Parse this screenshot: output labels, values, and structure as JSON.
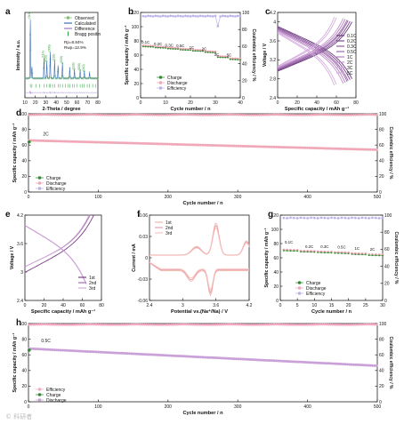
{
  "colors": {
    "xrd_obs": "#7ac36a",
    "xrd_calc": "#3b6fb6",
    "xrd_diff": "#9a7bd0",
    "xrd_bragg": "#2e9e3e",
    "charge": "#2e8b2e",
    "discharge": "#f0a8b8",
    "efficiency": "#b9b2e6",
    "cycle_h": "#c9a0d8",
    "eff_h": "#f5a8c0",
    "cv1": "#f4b6a8",
    "cv2": "#e8a0b0",
    "cv3": "#f7c6c0",
    "panel_c": [
      "#6b3c7e",
      "#7d4a90",
      "#8f5ba0",
      "#a06bb0",
      "#b37fc0",
      "#c595d0",
      "#d6addf"
    ],
    "panel_e": [
      "#7a3f86",
      "#a56db3",
      "#d4a9dc"
    ]
  },
  "watermark": "© 科研者",
  "chart_data": [
    {
      "id": "a",
      "type": "line",
      "label": "a",
      "xlabel": "2-Theta / degree",
      "ylabel": "Intensity / a.u.",
      "xlim": [
        10,
        80
      ],
      "xticks": [
        10,
        20,
        30,
        40,
        50,
        60,
        70,
        80
      ],
      "legend": [
        "Observed",
        "Calculated",
        "Difference",
        "Bragg positin"
      ],
      "annotations": [
        "Rp=8.84%",
        "Rwp=12.9%"
      ],
      "peaks": [
        {
          "x": 15.2,
          "h": 1.0,
          "label": "(010)"
        },
        {
          "x": 16.7,
          "h": 0.2
        },
        {
          "x": 28.3,
          "h": 0.35,
          "label": "(114)"
        },
        {
          "x": 31.0,
          "h": 0.28,
          "label": "(020)"
        },
        {
          "x": 34.3,
          "h": 0.45,
          "label": "(006)"
        },
        {
          "x": 38.5,
          "h": 0.3,
          "label": "(116)"
        },
        {
          "x": 41.8,
          "h": 0.22
        },
        {
          "x": 46.0,
          "h": 0.26,
          "label": "(030)"
        },
        {
          "x": 53.0,
          "h": 0.18
        },
        {
          "x": 57.5,
          "h": 0.15,
          "label": "(128)"
        },
        {
          "x": 63.0,
          "h": 0.14,
          "label": "(036)"
        },
        {
          "x": 67.0,
          "h": 0.12,
          "label": "(040)"
        },
        {
          "x": 72.0,
          "h": 0.1
        }
      ],
      "bragg": [
        15.2,
        16.7,
        20.5,
        24.3,
        28.3,
        31.0,
        33.2,
        34.3,
        36.5,
        38.5,
        41.8,
        44.0,
        46.0,
        48.8,
        51.2,
        53.0,
        55.6,
        57.5,
        60.1,
        63.0,
        65.2,
        67.0,
        69.8,
        72.0,
        75.0,
        77.6
      ]
    },
    {
      "id": "b",
      "type": "scatter",
      "label": "b",
      "xlabel": "Cycle number / n",
      "ylabel": "Specific capacity / mAh g⁻¹",
      "y2label": "Coulombic efficiency / %",
      "xlim": [
        0,
        40
      ],
      "ylim": [
        0,
        120
      ],
      "y2lim": [
        0,
        100
      ],
      "xticks": [
        0,
        10,
        20,
        30,
        40
      ],
      "yticks": [
        0,
        20,
        40,
        60,
        80,
        100,
        120
      ],
      "y2ticks": [
        0,
        20,
        40,
        60,
        80,
        100
      ],
      "legend": [
        "Charge",
        "Discharge",
        "Efficiency"
      ],
      "rates": [
        {
          "label": "0.1C",
          "x": 2,
          "y": 76
        },
        {
          "label": "0.2C",
          "x": 7,
          "y": 74
        },
        {
          "label": "0.3C",
          "x": 11.5,
          "y": 72
        },
        {
          "label": "0.5C",
          "x": 16,
          "y": 71
        },
        {
          "label": "1C",
          "x": 20.5,
          "y": 69
        },
        {
          "label": "2C",
          "x": 25.5,
          "y": 67
        },
        {
          "label": "3C",
          "x": 30.5,
          "y": 59
        },
        {
          "label": "5C",
          "x": 35.5,
          "y": 58
        }
      ],
      "charge_segments": [
        {
          "from": 1,
          "to": 5,
          "start": 72,
          "end": 71.5
        },
        {
          "from": 6,
          "to": 10,
          "start": 70.5,
          "end": 70
        },
        {
          "from": 11,
          "to": 15,
          "start": 69,
          "end": 68.5
        },
        {
          "from": 16,
          "to": 20,
          "start": 67.5,
          "end": 67
        },
        {
          "from": 21,
          "to": 25,
          "start": 66,
          "end": 65.5
        },
        {
          "from": 26,
          "to": 30,
          "start": 64,
          "end": 63.5
        },
        {
          "from": 31,
          "to": 35,
          "start": 57,
          "end": 56.5
        },
        {
          "from": 36,
          "to": 40,
          "start": 54,
          "end": 53.5
        }
      ],
      "efficiency": {
        "from": 1,
        "to": 40,
        "value": 96,
        "dip_at": 31,
        "dip_value": 84
      }
    },
    {
      "id": "c",
      "type": "line",
      "label": "c",
      "xlabel": "Specific capacity / mAh g⁻¹",
      "ylabel": "Voltage / V",
      "xlim": [
        0,
        80
      ],
      "ylim": [
        2.4,
        4.2
      ],
      "xticks": [
        0,
        20,
        40,
        60,
        80
      ],
      "yticks": [
        2.4,
        2.8,
        3.2,
        3.6,
        4.0,
        4.2
      ],
      "legend": [
        "0.1C",
        "0.2C",
        "0.3C",
        "0.5C",
        "1C",
        "2C",
        "3C",
        "5C"
      ],
      "curves": [
        {
          "rate": "0.1C",
          "capacity": 76
        },
        {
          "rate": "0.2C",
          "capacity": 74
        },
        {
          "rate": "0.3C",
          "capacity": 72
        },
        {
          "rate": "0.5C",
          "capacity": 71
        },
        {
          "rate": "1C",
          "capacity": 69
        },
        {
          "rate": "2C",
          "capacity": 67
        },
        {
          "rate": "3C",
          "capacity": 60
        },
        {
          "rate": "5C",
          "capacity": 58
        }
      ]
    },
    {
      "id": "d",
      "type": "scatter",
      "label": "d",
      "xlabel": "Cycle number / n",
      "ylabel": "Specific capacity / mAh g⁻¹",
      "y2label": "Coulombic efficiency / %",
      "xlim": [
        0,
        500
      ],
      "ylim": [
        0,
        100
      ],
      "y2lim": [
        0,
        100
      ],
      "xticks": [
        0,
        100,
        200,
        300,
        400,
        500
      ],
      "yticks": [
        0,
        20,
        40,
        60,
        80,
        100
      ],
      "y2ticks": [
        0,
        20,
        40,
        60,
        80,
        100
      ],
      "legend": [
        "Charge",
        "Discharge",
        "Efficiency"
      ],
      "rate_label": {
        "text": "2C",
        "x": 25,
        "y": 72
      },
      "discharge": {
        "start": 66,
        "end": 54
      },
      "charge_first": 64,
      "efficiency": 99
    },
    {
      "id": "e",
      "type": "line",
      "label": "e",
      "xlabel": "Specific capacity / mAh g⁻¹",
      "ylabel": "Voltage / V",
      "xlim": [
        0,
        80
      ],
      "ylim": [
        2.4,
        4.2
      ],
      "xticks": [
        0,
        20,
        40,
        60,
        80
      ],
      "yticks": [
        2.4,
        3.0,
        3.6,
        4.2
      ],
      "legend": [
        "1st",
        "2nd",
        "3rd"
      ],
      "curves": [
        {
          "cycle": "1st",
          "charge_capacity": 72,
          "discharge_capacity": 64
        },
        {
          "cycle": "2nd",
          "charge_capacity": 68,
          "discharge_capacity": 64
        },
        {
          "cycle": "3rd",
          "charge_capacity": 67,
          "discharge_capacity": 64
        }
      ]
    },
    {
      "id": "f",
      "type": "line",
      "label": "f",
      "xlabel": "Potential vs.(Na⁺/Na) / V",
      "ylabel": "Current / mA",
      "xlim": [
        2.4,
        4.2
      ],
      "ylim": [
        -0.06,
        0.06
      ],
      "xticks": [
        2.4,
        3.0,
        3.6,
        4.2
      ],
      "yticks": [
        -0.06,
        -0.03,
        0.0,
        0.03,
        0.06
      ],
      "legend": [
        "1st",
        "2nd",
        "3rd"
      ],
      "cycles": [
        {
          "cycle": "1st",
          "scale": 1.0
        },
        {
          "cycle": "2nd",
          "scale": 0.93
        },
        {
          "cycle": "3rd",
          "scale": 0.86
        }
      ]
    },
    {
      "id": "g",
      "type": "scatter",
      "label": "g",
      "xlabel": "Cycle number / n",
      "ylabel": "Specific capacity / mAh g⁻¹",
      "y2label": "Coulombic efficiency / %",
      "xlim": [
        0,
        30
      ],
      "ylim": [
        0,
        120
      ],
      "y2lim": [
        0,
        100
      ],
      "xticks": [
        0,
        5,
        10,
        15,
        20,
        25,
        30
      ],
      "yticks": [
        0,
        20,
        40,
        60,
        80,
        100,
        120
      ],
      "y2ticks": [
        0,
        20,
        40,
        60,
        80,
        100
      ],
      "legend": [
        "Charge",
        "Discharge",
        "Efficiency"
      ],
      "rates": [
        {
          "label": "0.1C",
          "x": 2.5,
          "y": 80
        },
        {
          "label": "0.2C",
          "x": 8.5,
          "y": 74
        },
        {
          "label": "0.3C",
          "x": 13,
          "y": 74
        },
        {
          "label": "0.5C",
          "x": 18,
          "y": 73
        },
        {
          "label": "1C",
          "x": 22.5,
          "y": 71
        },
        {
          "label": "2C",
          "x": 27,
          "y": 70
        }
      ],
      "charge_segments": [
        {
          "from": 1,
          "to": 5,
          "start": 70,
          "end": 69.5
        },
        {
          "from": 6,
          "to": 10,
          "start": 68.5,
          "end": 68
        },
        {
          "from": 11,
          "to": 15,
          "start": 67.5,
          "end": 67
        },
        {
          "from": 16,
          "to": 20,
          "start": 66.5,
          "end": 66
        },
        {
          "from": 21,
          "to": 25,
          "start": 65,
          "end": 64.5
        },
        {
          "from": 26,
          "to": 30,
          "start": 63.5,
          "end": 63
        }
      ],
      "efficiency": {
        "from": 1,
        "to": 30,
        "value": 97
      }
    },
    {
      "id": "h",
      "type": "scatter",
      "label": "h",
      "xlabel": "Cycle number / n",
      "ylabel": "Specific capacity / mAh g⁻¹",
      "y2label": "Coulombic efficiency / %",
      "xlim": [
        0,
        500
      ],
      "ylim": [
        0,
        100
      ],
      "y2lim": [
        0,
        100
      ],
      "xticks": [
        0,
        100,
        200,
        300,
        400,
        500
      ],
      "yticks": [
        0,
        20,
        40,
        60,
        80,
        100
      ],
      "y2ticks": [
        0,
        20,
        40,
        60,
        80,
        100
      ],
      "legend": [
        "Efficiency",
        "Charge",
        "Discharge"
      ],
      "rate_label": {
        "text": "0.5C",
        "x": 25,
        "y": 76
      },
      "discharge": {
        "start": 68,
        "end": 46
      },
      "charge_first": 66,
      "efficiency": 99
    }
  ]
}
